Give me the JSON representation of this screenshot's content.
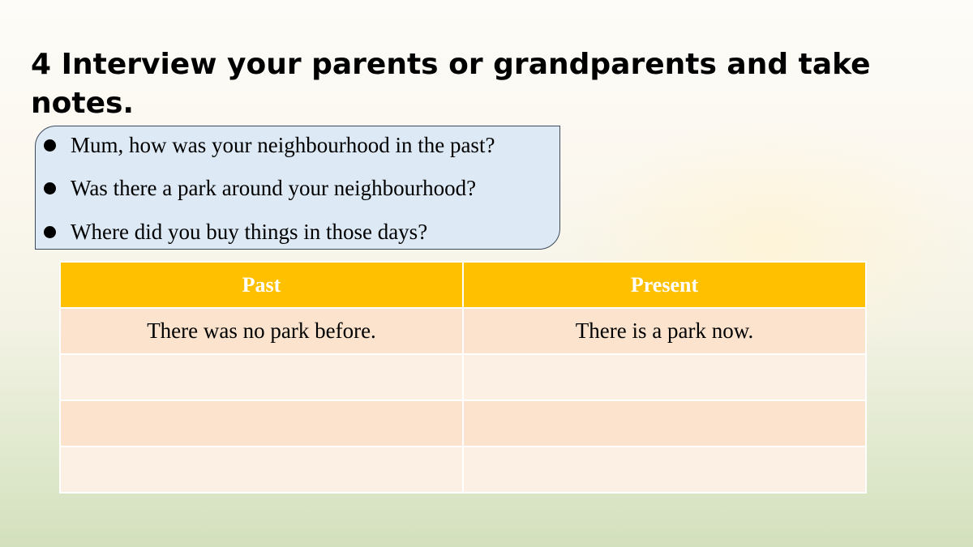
{
  "title": "4 Interview your parents or grandparents and take notes.",
  "questions": [
    "Mum, how was your neighbourhood in the past?",
    "Was there a park around your neighbourhood?",
    "Where did you buy things in those days?"
  ],
  "table": {
    "headers": [
      "Past",
      "Present"
    ],
    "rows": [
      [
        "There was no park before.",
        "There is a park now."
      ],
      [
        "",
        ""
      ],
      [
        "",
        ""
      ],
      [
        "",
        ""
      ]
    ]
  },
  "colors": {
    "header": "#ffc000",
    "row_odd": "#fbe3cd",
    "row_even": "#fcefe4",
    "question_box": "#dde9f5"
  }
}
